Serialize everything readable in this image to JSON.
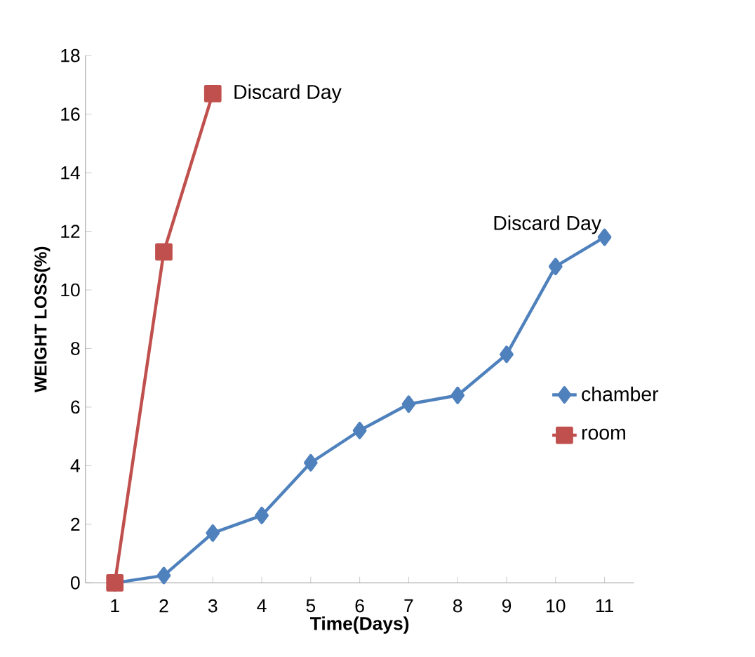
{
  "chart_data": {
    "type": "line",
    "xlabel": "Time(Days)",
    "ylabel": "WEIGHT LOSS(%)",
    "categories": [
      "1",
      "2",
      "3",
      "4",
      "5",
      "6",
      "7",
      "8",
      "9",
      "10",
      "11"
    ],
    "series": [
      {
        "name": "chamber",
        "color": "#4f81bd",
        "marker": "diamond",
        "values": [
          0,
          0.25,
          1.7,
          2.3,
          4.1,
          5.2,
          6.1,
          6.4,
          7.8,
          10.8,
          11.8
        ]
      },
      {
        "name": "room",
        "color": "#c0504d",
        "marker": "square",
        "values": [
          0,
          11.3,
          16.7,
          null,
          null,
          null,
          null,
          null,
          null,
          null,
          null
        ]
      }
    ],
    "ylim": [
      0,
      18
    ],
    "yticks": [
      0,
      2,
      4,
      6,
      8,
      10,
      12,
      14,
      16,
      18
    ],
    "annotations": [
      {
        "text": "Discard Day",
        "x": "3",
        "y": 16.7
      },
      {
        "text": "Discard Day",
        "x": "11",
        "y": 11.8
      }
    ],
    "legend": "right",
    "grid": false,
    "line_style": "solid"
  }
}
